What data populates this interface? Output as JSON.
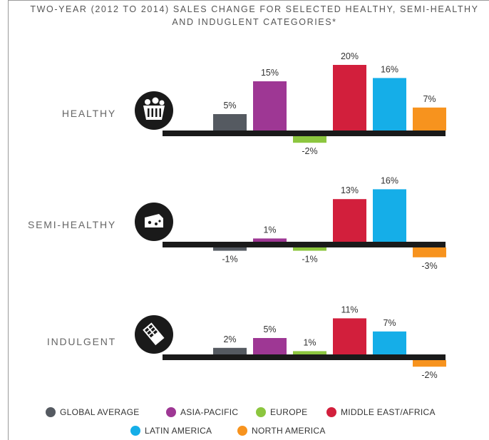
{
  "title_line1": "TWO-YEAR (2012 TO 2014) SALES CHANGE FOR SELECTED HEALTHY, SEMI-HEALTHY",
  "title_line2": "AND INDUGLENT CATEGORIES*",
  "colors": {
    "global_average": "#555a61",
    "asia_pacific": "#9e3794",
    "europe": "#8cc63f",
    "middle_east_africa": "#d21f3c",
    "latin_america": "#15aee8",
    "north_america": "#f7931e",
    "axis": "#1a1a1a",
    "icon_bg": "#1a1a1a"
  },
  "chart_data": {
    "type": "bar",
    "title": "TWO-YEAR (2012 TO 2014) SALES CHANGE FOR SELECTED HEALTHY, SEMI-HEALTHY AND INDUGLENT CATEGORIES*",
    "unit": "%",
    "series_names": [
      "GLOBAL AVERAGE",
      "ASIA-PACIFIC",
      "EUROPE",
      "MIDDLE EAST/AFRICA",
      "LATIN AMERICA",
      "NORTH AMERICA"
    ],
    "groups": [
      {
        "category": "HEALTHY",
        "icon": "basket-icon",
        "values": [
          5,
          15,
          -2,
          20,
          16,
          7
        ],
        "labels": [
          "5%",
          "15%",
          "-2%",
          "20%",
          "16%",
          "7%"
        ]
      },
      {
        "category": "SEMI-HEALTHY",
        "icon": "cheese-icon",
        "values": [
          -1,
          1,
          -1,
          13,
          16,
          -3
        ],
        "labels": [
          "-1%",
          "1%",
          "-1%",
          "13%",
          "16%",
          "-3%"
        ]
      },
      {
        "category": "INDULGENT",
        "icon": "chocolate-bar-icon",
        "values": [
          2,
          5,
          1,
          11,
          7,
          -2
        ],
        "labels": [
          "2%",
          "5%",
          "1%",
          "11%",
          "7%",
          "-2%"
        ]
      }
    ]
  },
  "legend": [
    {
      "label": "GLOBAL AVERAGE",
      "color_key": "global_average"
    },
    {
      "label": "ASIA-PACIFIC",
      "color_key": "asia_pacific"
    },
    {
      "label": "EUROPE",
      "color_key": "europe"
    },
    {
      "label": "MIDDLE EAST/AFRICA",
      "color_key": "middle_east_africa"
    },
    {
      "label": "LATIN AMERICA",
      "color_key": "latin_america"
    },
    {
      "label": "NORTH AMERICA",
      "color_key": "north_america"
    }
  ]
}
